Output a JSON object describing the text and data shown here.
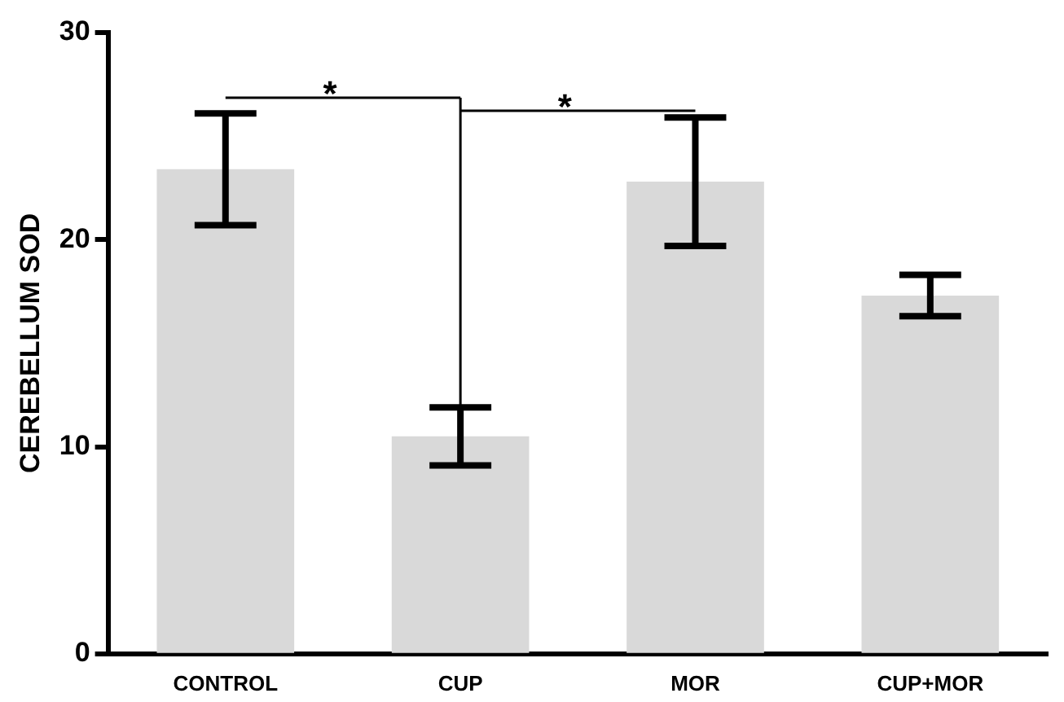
{
  "chart_data": {
    "type": "bar",
    "ylabel": "CEREBELLUM SOD",
    "categories": [
      "CONTROL",
      "CUP",
      "MOR",
      "CUP+MOR"
    ],
    "values": [
      23.4,
      10.5,
      22.8,
      17.3
    ],
    "errors": [
      2.7,
      1.4,
      3.1,
      1.0
    ],
    "color": "#d9d9d9",
    "ylim": [
      0,
      30
    ],
    "yticks": [
      0,
      10,
      20,
      30
    ],
    "grid": false,
    "legend": false,
    "annotations": [
      "*",
      "*"
    ]
  }
}
